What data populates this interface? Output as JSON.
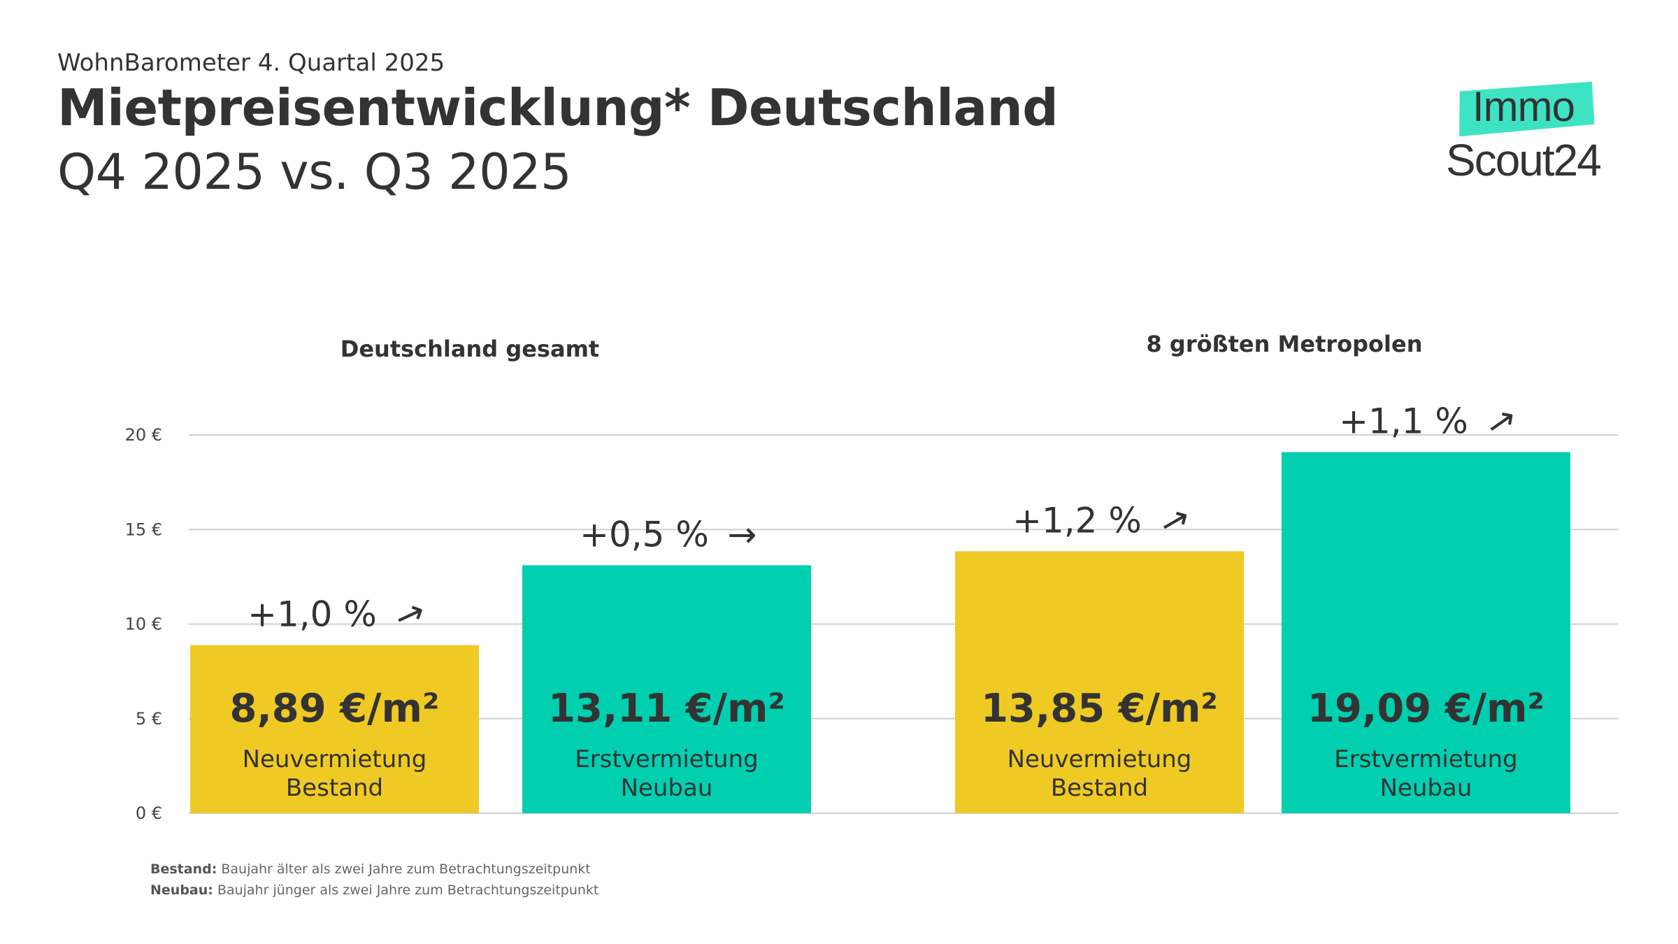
{
  "header": {
    "kicker": "WohnBarometer 4. Quartal 2025",
    "title": "Mietpreisentwicklung* Deutschland",
    "subtitle": "Q4 2025 vs. Q3 2025"
  },
  "logo": {
    "line1": "Immo",
    "line2": "Scout24",
    "badge_color": "#3ee3c4"
  },
  "footnotes": [
    {
      "term": "Bestand:",
      "text": " Baujahr älter als zwei Jahre zum Betrachtungszeitpunkt"
    },
    {
      "term": "Neubau:",
      "text": " Baujahr jünger als zwei Jahre zum Betrachtungszeitpunkt"
    }
  ],
  "colors": {
    "bestand": "#f0ca24",
    "neubau": "#00cfb0",
    "text": "#333333",
    "grid": "#d0d0d0"
  },
  "chart_data": {
    "type": "bar",
    "y_ticks": [
      "0 €",
      "5 €",
      "10 €",
      "15 €",
      "20 €"
    ],
    "ylim": [
      0,
      20
    ],
    "grid": true,
    "groups": [
      {
        "label": "Deutschland gesamt",
        "bars": [
          {
            "value": 8.89,
            "value_label": "8,89 €/m²",
            "label_line1": "Neuvermietung",
            "label_line2": "Bestand",
            "change": "+1,0 %",
            "arrow": "→",
            "arrow_angle": -25,
            "kind": "bestand"
          },
          {
            "value": 13.11,
            "value_label": "13,11 €/m²",
            "label_line1": "Erstvermietung",
            "label_line2": "Neubau",
            "change": "+0,5 %",
            "arrow": "→",
            "arrow_angle": 0,
            "kind": "neubau"
          }
        ]
      },
      {
        "label": "8 größten Metropolen",
        "bars": [
          {
            "value": 13.85,
            "value_label": "13,85 €/m²",
            "label_line1": "Neuvermietung",
            "label_line2": "Bestand",
            "change": "+1,2 %",
            "arrow": "→",
            "arrow_angle": -30,
            "kind": "bestand"
          },
          {
            "value": 19.09,
            "value_label": "19,09 €/m²",
            "label_line1": "Erstvermietung",
            "label_line2": "Neubau",
            "change": "+1,1 %",
            "arrow": "→",
            "arrow_angle": -35,
            "kind": "neubau"
          }
        ]
      }
    ]
  }
}
